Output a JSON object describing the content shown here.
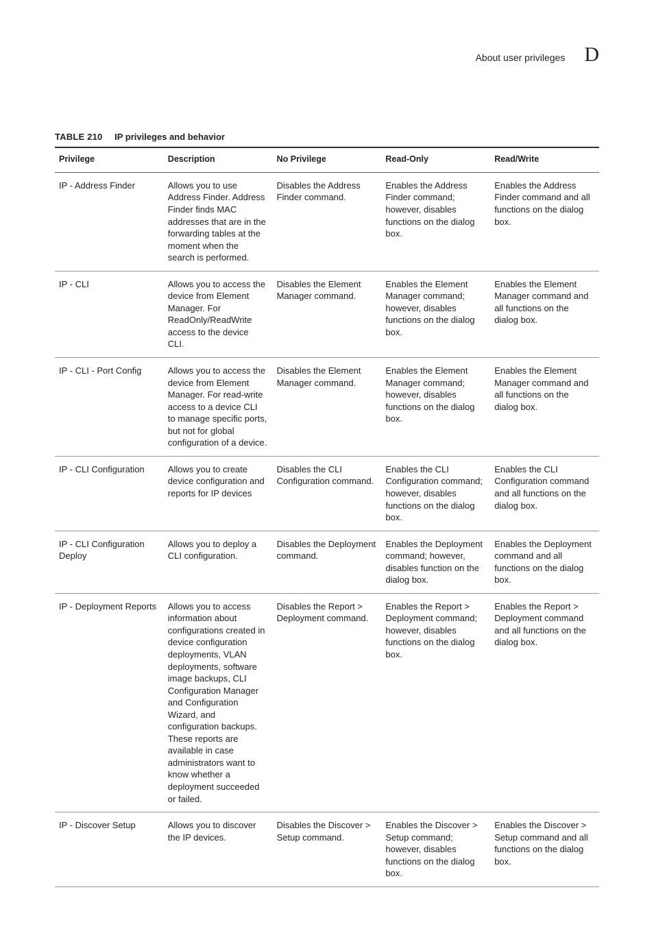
{
  "header": {
    "section_title": "About user privileges",
    "section_letter": "D"
  },
  "table": {
    "number": "TABLE 210",
    "title": "IP privileges and behavior",
    "columns": [
      "Privilege",
      "Description",
      "No Privilege",
      "Read-Only",
      "Read/Write"
    ],
    "column_widths": [
      "155px",
      "155px",
      "155px",
      "155px",
      "155px"
    ],
    "rows": [
      {
        "privilege": "IP - Address Finder",
        "description": "Allows you to use Address Finder. Address Finder finds MAC addresses that are in the forwarding tables at the moment when the search is performed.",
        "no_priv": "Disables the Address Finder command.",
        "read_only": "Enables the Address Finder command; however, disables functions on the dialog box.",
        "read_write": "Enables the Address Finder command and all functions on the dialog box."
      },
      {
        "privilege": "IP - CLI",
        "description": "Allows you to access the device from Element Manager. For ReadOnly/ReadWrite access to the device CLI.",
        "no_priv": "Disables the Element Manager command.",
        "read_only": "Enables the Element Manager command; however, disables functions on the dialog box.",
        "read_write": "Enables the Element Manager command and all functions on the dialog box."
      },
      {
        "privilege": "IP - CLI - Port Config",
        "description": "Allows you to access the device from Element Manager. For read-write access to a device CLI to manage specific ports, but not for global configuration of a device.",
        "no_priv": "Disables the Element Manager command.",
        "read_only": "Enables the Element Manager command; however, disables functions on the dialog box.",
        "read_write": "Enables the Element Manager command and all functions on the dialog box."
      },
      {
        "privilege": "IP - CLI Configuration",
        "description": "Allows you to create device configuration and reports for IP devices",
        "no_priv": "Disables the CLI Configuration command.",
        "read_only": "Enables the CLI Configuration command; however, disables functions on the dialog box.",
        "read_write": "Enables the CLI Configuration command and all functions on the dialog box."
      },
      {
        "privilege": "IP - CLI Configuration Deploy",
        "description": "Allows you to deploy a CLI configuration.",
        "no_priv": "Disables the Deployment command.",
        "read_only": "Enables the Deployment command; however, disables function on the dialog box.",
        "read_write": "Enables the Deployment command and all functions on the dialog box."
      },
      {
        "privilege": "IP - Deployment Reports",
        "description": "Allows you to access information about configurations created in device configuration deployments, VLAN deployments, software image backups, CLI Configuration Manager and Configuration Wizard, and configuration backups. These reports are available in case administrators want to know whether a deployment succeeded or failed.",
        "no_priv": "Disables the Report > Deployment command.",
        "read_only": "Enables the Report > Deployment command; however, disables functions on the dialog box.",
        "read_write": "Enables the Report > Deployment command and all functions on the dialog box."
      },
      {
        "privilege": "IP - Discover Setup",
        "description": "Allows you to discover the IP devices.",
        "no_priv": "Disables the Discover > Setup command.",
        "read_only": "Enables the Discover > Setup command; however, disables functions on the dialog box.",
        "read_write": "Enables the Discover > Setup command and all functions on the dialog box."
      }
    ]
  },
  "colors": {
    "text": "#222222",
    "rule_heavy": "#333333",
    "rule_mid": "#555555",
    "rule_light": "#999999",
    "background": "#ffffff"
  }
}
